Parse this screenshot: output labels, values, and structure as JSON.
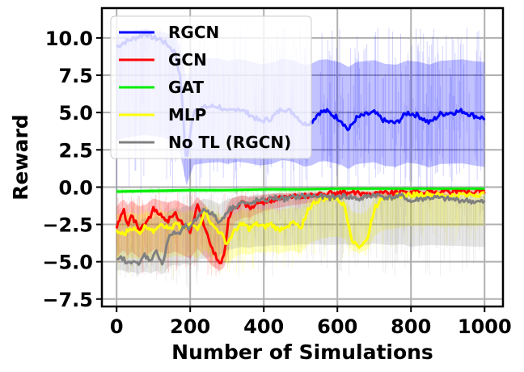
{
  "chart_data": {
    "type": "line",
    "title": "",
    "xlabel": "Number of Simulations",
    "ylabel": "Reward",
    "xlim": [
      -40,
      1050
    ],
    "ylim": [
      -8.0,
      12.0
    ],
    "xticks": [
      0,
      200,
      400,
      600,
      800,
      1000
    ],
    "xtick_labels": [
      "0",
      "200",
      "400",
      "600",
      "800",
      "1000"
    ],
    "yticks": [
      -7.5,
      -5.0,
      -2.5,
      0.0,
      2.5,
      5.0,
      7.5,
      10.0
    ],
    "ytick_labels": [
      "−7.5",
      "−5.0",
      "−2.5",
      "0.0",
      "2.5",
      "5.0",
      "7.5",
      "10.0"
    ],
    "grid": true,
    "legend_position": "top-left",
    "series": [
      {
        "name": "RGCN",
        "color": "#0000ff",
        "band_alpha": 0.3,
        "points": [
          [
            0,
            9.4
          ],
          [
            20,
            9.7
          ],
          [
            40,
            9.9
          ],
          [
            60,
            10.1
          ],
          [
            80,
            10.3
          ],
          [
            100,
            10.0
          ],
          [
            120,
            9.9
          ],
          [
            140,
            9.5
          ],
          [
            160,
            9.0
          ],
          [
            175,
            7.0
          ],
          [
            185,
            3.0
          ],
          [
            190,
            1.7
          ],
          [
            200,
            3.5
          ],
          [
            210,
            5.2
          ],
          [
            230,
            5.3
          ],
          [
            250,
            5.4
          ],
          [
            280,
            5.4
          ],
          [
            300,
            5.0
          ],
          [
            330,
            5.3
          ],
          [
            360,
            4.9
          ],
          [
            390,
            4.4
          ],
          [
            420,
            4.6
          ],
          [
            450,
            5.3
          ],
          [
            480,
            5.0
          ],
          [
            510,
            4.2
          ],
          [
            530,
            4.4
          ],
          [
            550,
            5.0
          ],
          [
            570,
            5.1
          ],
          [
            590,
            4.8
          ],
          [
            610,
            4.5
          ],
          [
            630,
            3.8
          ],
          [
            650,
            4.6
          ],
          [
            670,
            4.8
          ],
          [
            700,
            5.0
          ],
          [
            730,
            4.4
          ],
          [
            760,
            4.3
          ],
          [
            790,
            5.0
          ],
          [
            820,
            4.8
          ],
          [
            850,
            4.3
          ],
          [
            880,
            4.9
          ],
          [
            910,
            5.0
          ],
          [
            940,
            5.1
          ],
          [
            970,
            4.8
          ],
          [
            1000,
            4.6
          ]
        ],
        "band": [
          [
            0,
            -1.0,
            10.8
          ],
          [
            200,
            -1.0,
            10.8
          ],
          [
            400,
            -0.5,
            10.8
          ],
          [
            600,
            -0.5,
            10.9
          ],
          [
            800,
            -0.6,
            10.8
          ],
          [
            1000,
            -0.8,
            10.9
          ]
        ]
      },
      {
        "name": "GCN",
        "color": "#ff0000",
        "band_alpha": 0.3,
        "points": [
          [
            0,
            -2.8
          ],
          [
            10,
            -2.0
          ],
          [
            20,
            -1.6
          ],
          [
            30,
            -2.6
          ],
          [
            40,
            -1.8
          ],
          [
            60,
            -2.8
          ],
          [
            80,
            -2.5
          ],
          [
            100,
            -1.5
          ],
          [
            120,
            -1.9
          ],
          [
            140,
            -2.2
          ],
          [
            160,
            -1.8
          ],
          [
            180,
            -2.4
          ],
          [
            200,
            -3.0
          ],
          [
            220,
            -1.3
          ],
          [
            240,
            -2.7
          ],
          [
            260,
            -4.2
          ],
          [
            275,
            -4.8
          ],
          [
            285,
            -5.2
          ],
          [
            295,
            -4.0
          ],
          [
            305,
            -2.0
          ],
          [
            315,
            -1.5
          ],
          [
            330,
            -1.3
          ],
          [
            345,
            -1.0
          ],
          [
            360,
            -1.4
          ],
          [
            380,
            -1.2
          ],
          [
            400,
            -1.0
          ],
          [
            430,
            -0.8
          ],
          [
            460,
            -0.7
          ],
          [
            500,
            -0.6
          ],
          [
            550,
            -0.5
          ],
          [
            600,
            -0.4
          ],
          [
            700,
            -0.4
          ],
          [
            800,
            -0.3
          ],
          [
            900,
            -0.3
          ],
          [
            1000,
            -0.3
          ]
        ],
        "band": [
          [
            0,
            -6.0,
            -0.3
          ],
          [
            300,
            -6.0,
            -0.2
          ],
          [
            320,
            -3.0,
            -0.2
          ],
          [
            400,
            -2.0,
            -0.2
          ],
          [
            600,
            -1.0,
            -0.2
          ],
          [
            1000,
            -0.6,
            -0.1
          ]
        ]
      },
      {
        "name": "GAT",
        "color": "#00ee00",
        "band_alpha": 0.3,
        "points": [
          [
            0,
            -0.3
          ],
          [
            100,
            -0.25
          ],
          [
            200,
            -0.2
          ],
          [
            300,
            -0.2
          ],
          [
            400,
            -0.15
          ],
          [
            500,
            -0.15
          ],
          [
            600,
            -0.1
          ],
          [
            700,
            -0.1
          ],
          [
            800,
            -0.1
          ],
          [
            900,
            -0.1
          ],
          [
            1000,
            -0.1
          ]
        ],
        "band": [
          [
            0,
            -0.5,
            -0.05
          ],
          [
            1000,
            -0.3,
            0.0
          ]
        ]
      },
      {
        "name": "MLP",
        "color": "#ffff00",
        "band_alpha": 0.3,
        "points": [
          [
            0,
            -3.0
          ],
          [
            20,
            -3.2
          ],
          [
            40,
            -2.7
          ],
          [
            60,
            -3.1
          ],
          [
            80,
            -2.6
          ],
          [
            100,
            -2.9
          ],
          [
            120,
            -2.4
          ],
          [
            140,
            -2.8
          ],
          [
            160,
            -2.5
          ],
          [
            180,
            -2.7
          ],
          [
            200,
            -2.4
          ],
          [
            220,
            -2.9
          ],
          [
            240,
            -1.5
          ],
          [
            260,
            -2.6
          ],
          [
            280,
            -3.0
          ],
          [
            300,
            -3.8
          ],
          [
            320,
            -3.0
          ],
          [
            340,
            -2.4
          ],
          [
            360,
            -2.8
          ],
          [
            380,
            -2.5
          ],
          [
            400,
            -2.7
          ],
          [
            420,
            -2.5
          ],
          [
            440,
            -2.9
          ],
          [
            460,
            -2.6
          ],
          [
            480,
            -2.4
          ],
          [
            500,
            -2.8
          ],
          [
            520,
            -1.5
          ],
          [
            540,
            -1.0
          ],
          [
            560,
            -0.8
          ],
          [
            580,
            -0.7
          ],
          [
            600,
            -0.8
          ],
          [
            620,
            -1.3
          ],
          [
            640,
            -3.5
          ],
          [
            660,
            -4.0
          ],
          [
            680,
            -3.6
          ],
          [
            700,
            -1.5
          ],
          [
            720,
            -0.7
          ],
          [
            760,
            -0.6
          ],
          [
            800,
            -0.5
          ],
          [
            850,
            -0.5
          ],
          [
            900,
            -0.6
          ],
          [
            950,
            -0.5
          ],
          [
            1000,
            -0.5
          ]
        ],
        "band": [
          [
            0,
            -6.0,
            -1.0
          ],
          [
            300,
            -6.0,
            -1.0
          ],
          [
            400,
            -5.5,
            -0.7
          ],
          [
            500,
            -5.5,
            -0.6
          ],
          [
            600,
            -5.0,
            -0.4
          ],
          [
            700,
            -4.5,
            -0.3
          ],
          [
            800,
            -4.0,
            -0.3
          ],
          [
            1000,
            -4.0,
            -0.3
          ]
        ]
      },
      {
        "name": "No TL (RGCN)",
        "color": "#808080",
        "band_alpha": 0.25,
        "points": [
          [
            0,
            -5.0
          ],
          [
            15,
            -4.7
          ],
          [
            30,
            -5.2
          ],
          [
            45,
            -4.8
          ],
          [
            60,
            -5.3
          ],
          [
            75,
            -4.5
          ],
          [
            90,
            -4.9
          ],
          [
            110,
            -4.3
          ],
          [
            125,
            -5.2
          ],
          [
            140,
            -3.5
          ],
          [
            155,
            -3.0
          ],
          [
            170,
            -3.2
          ],
          [
            185,
            -2.6
          ],
          [
            200,
            -2.8
          ],
          [
            215,
            -2.2
          ],
          [
            230,
            -1.6
          ],
          [
            245,
            -1.5
          ],
          [
            260,
            -1.8
          ],
          [
            280,
            -2.4
          ],
          [
            300,
            -1.6
          ],
          [
            320,
            -1.3
          ],
          [
            340,
            -1.0
          ],
          [
            360,
            -1.2
          ],
          [
            380,
            -0.9
          ],
          [
            400,
            -0.9
          ],
          [
            430,
            -0.7
          ],
          [
            460,
            -0.8
          ],
          [
            500,
            -0.6
          ],
          [
            540,
            -0.6
          ],
          [
            580,
            -0.7
          ],
          [
            620,
            -0.6
          ],
          [
            660,
            -0.8
          ],
          [
            700,
            -0.5
          ],
          [
            740,
            -0.7
          ],
          [
            780,
            -0.6
          ],
          [
            800,
            -1.0
          ],
          [
            820,
            -0.8
          ],
          [
            860,
            -0.7
          ],
          [
            900,
            -0.8
          ],
          [
            950,
            -0.9
          ],
          [
            980,
            -1.0
          ],
          [
            1000,
            -1.0
          ]
        ],
        "band": [
          [
            0,
            -6.0,
            -0.4
          ],
          [
            240,
            -7.0,
            -0.3
          ],
          [
            280,
            -6.0,
            -0.3
          ],
          [
            400,
            -6.0,
            -0.2
          ],
          [
            600,
            -6.0,
            -0.2
          ],
          [
            800,
            -6.0,
            -0.2
          ],
          [
            1000,
            -6.0,
            -0.3
          ]
        ]
      }
    ]
  }
}
